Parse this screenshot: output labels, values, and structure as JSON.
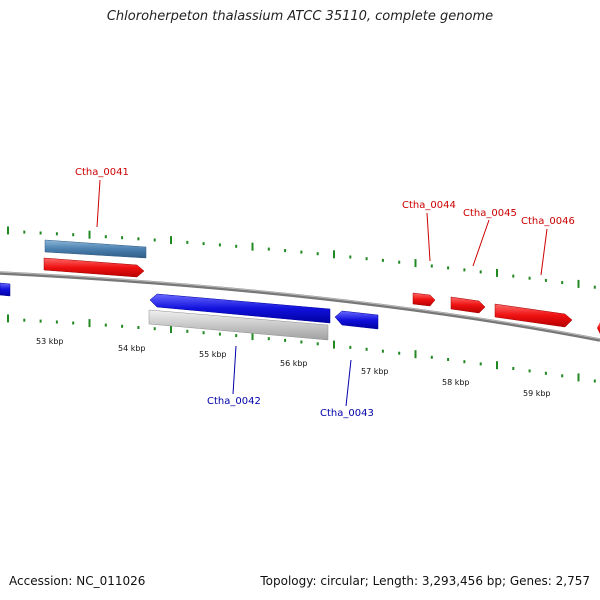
{
  "title": "Chloroherpeton thalassium ATCC 35110, complete genome",
  "footer": {
    "accession": "Accession: NC_011026",
    "topology": "Topology: circular; Length: 3,293,456 bp; Genes: 2,757"
  },
  "colors": {
    "forward_gene": "#ee1111",
    "reverse_gene": "#1111dd",
    "forward_label": "#cc0000",
    "reverse_label": "#0000aa",
    "backbone": "#777777",
    "ticks": "#228822",
    "rna_forward": "#4a80b0",
    "pseudo_reverse": "#c8c8c8"
  },
  "kbp_labels": [
    "53 kbp",
    "54 kbp",
    "55 kbp",
    "56 kbp",
    "57 kbp",
    "58 kbp",
    "59 kbp"
  ],
  "forward_genes": [
    {
      "name": "Ctha_0041",
      "label": "Ctha_0041"
    },
    {
      "name": "Ctha_0044",
      "label": "Ctha_0044"
    },
    {
      "name": "Ctha_0045",
      "label": "Ctha_0045"
    },
    {
      "name": "Ctha_0046",
      "label": "Ctha_0046"
    }
  ],
  "reverse_genes": [
    {
      "name": "Ctha_0042",
      "label": "Ctha_0042"
    },
    {
      "name": "Ctha_0043",
      "label": "Ctha_0043"
    }
  ]
}
